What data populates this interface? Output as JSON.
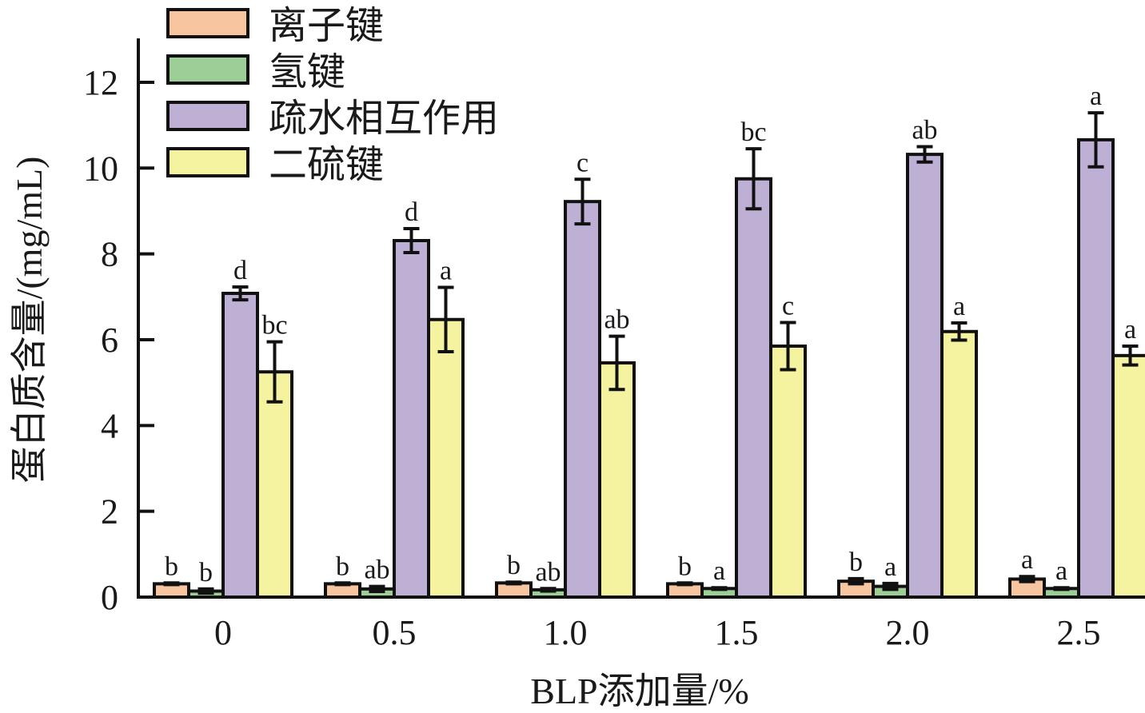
{
  "chart_data": {
    "type": "bar",
    "title": "",
    "xlabel": "BLP添加量/%",
    "ylabel": "蛋白质含量/(mg/mL)",
    "ylim": [
      0,
      13
    ],
    "yticks": [
      0,
      2,
      4,
      6,
      8,
      10,
      12
    ],
    "ytick_labels": [
      "0",
      "2",
      "4",
      "6",
      "8",
      "10",
      "12"
    ],
    "categories": [
      "0",
      "0.5",
      "1.0",
      "1.5",
      "2.0",
      "2.5"
    ],
    "legend_position": "top-left",
    "grid": false,
    "series": [
      {
        "name": "离子键",
        "color": "#F7C59F",
        "values": [
          0.31,
          0.31,
          0.33,
          0.31,
          0.37,
          0.42
        ],
        "errors": [
          0.02,
          0.02,
          0.02,
          0.02,
          0.06,
          0.06
        ],
        "letters": [
          "b",
          "b",
          "b",
          "b",
          "b",
          "a"
        ]
      },
      {
        "name": "氢键",
        "color": "#9ECE98",
        "values": [
          0.14,
          0.19,
          0.17,
          0.2,
          0.25,
          0.2
        ],
        "errors": [
          0.05,
          0.06,
          0.03,
          0.02,
          0.07,
          0.02
        ],
        "letters": [
          "b",
          "ab",
          "ab",
          "a",
          "a",
          "a"
        ]
      },
      {
        "name": "疏水相互作用",
        "color": "#BEB0D4",
        "values": [
          7.08,
          8.31,
          9.22,
          9.75,
          10.32,
          10.66
        ],
        "errors": [
          0.15,
          0.28,
          0.52,
          0.7,
          0.18,
          0.63
        ],
        "letters": [
          "d",
          "d",
          "c",
          "bc",
          "ab",
          "a"
        ]
      },
      {
        "name": "二硫键",
        "color": "#F5F2A0",
        "values": [
          5.25,
          6.47,
          5.46,
          5.85,
          6.19,
          5.63
        ],
        "errors": [
          0.7,
          0.75,
          0.62,
          0.55,
          0.2,
          0.22
        ],
        "letters": [
          "bc",
          "a",
          "ab",
          "c",
          "a",
          "a"
        ]
      }
    ]
  }
}
